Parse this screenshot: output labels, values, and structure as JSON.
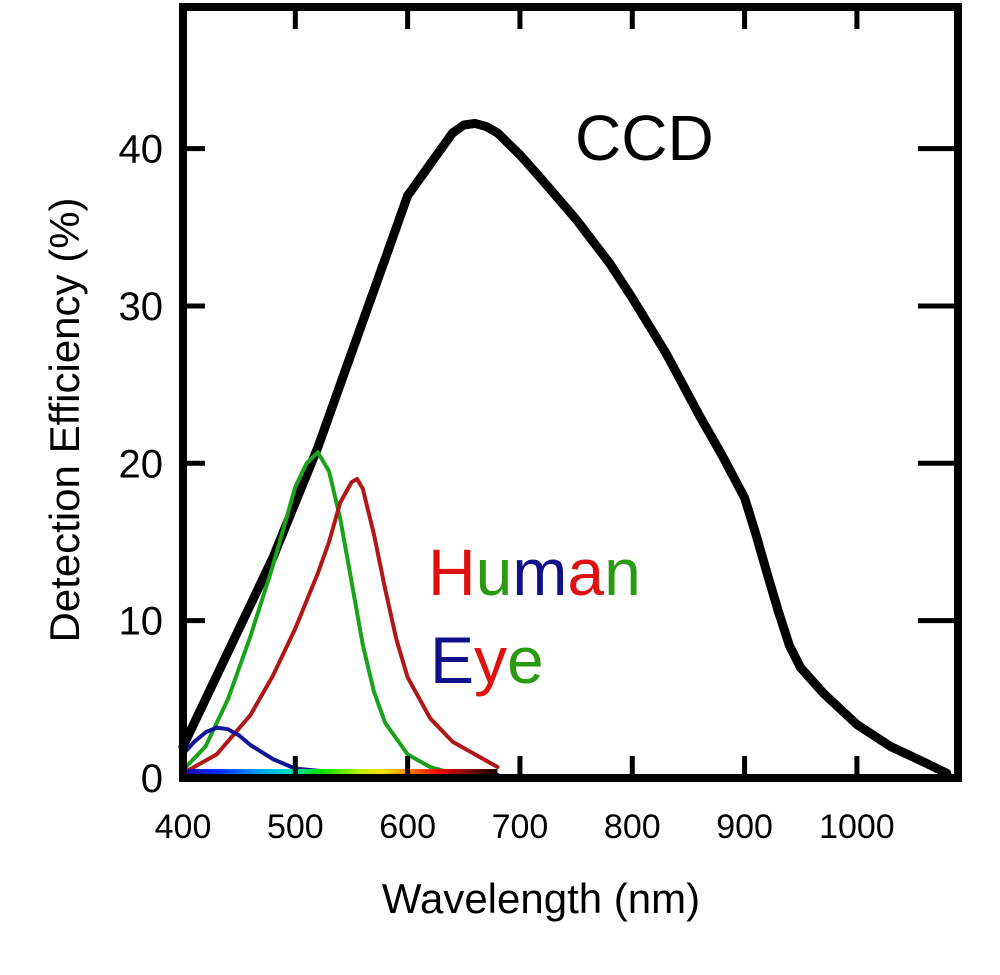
{
  "chart_data": {
    "type": "line",
    "xlabel": "Wavelength (nm)",
    "ylabel": "Detection Efficiency (%)",
    "xlim": [
      400,
      1090
    ],
    "ylim": [
      0,
      49
    ],
    "x_ticks": [
      400,
      500,
      600,
      700,
      800,
      900,
      1000
    ],
    "y_ticks": [
      0,
      10,
      20,
      30,
      40
    ],
    "x_tick_labels": [
      "400",
      "500",
      "600",
      "700",
      "800",
      "900",
      "1000"
    ],
    "y_tick_labels": [
      "0",
      "10",
      "20",
      "30",
      "40"
    ],
    "grid": false,
    "spectrum_bar": {
      "from": 400,
      "to": 680
    },
    "annotations": {
      "ccd_label": "CCD",
      "human_letters": [
        {
          "char": "H",
          "color": "#e01010"
        },
        {
          "char": "u",
          "color": "#2a9a10"
        },
        {
          "char": "m",
          "color": "#10108a"
        },
        {
          "char": "a",
          "color": "#e01010"
        },
        {
          "char": "n",
          "color": "#2a9a10"
        }
      ],
      "eye_letters": [
        {
          "char": "E",
          "color": "#10108a"
        },
        {
          "char": "y",
          "color": "#e01010"
        },
        {
          "char": "e",
          "color": "#2a9a10"
        }
      ]
    },
    "series": [
      {
        "color": "#000000",
        "x": [
          400,
          420,
          450,
          480,
          500,
          520,
          540,
          560,
          580,
          600,
          620,
          630,
          640,
          650,
          660,
          670,
          680,
          700,
          720,
          750,
          780,
          800,
          830,
          860,
          880,
          900,
          910,
          920,
          930,
          940,
          950,
          970,
          1000,
          1030,
          1060,
          1080
        ],
        "y": [
          2,
          5,
          9.5,
          14,
          17.5,
          21,
          25,
          29,
          33,
          37,
          39,
          40,
          41,
          41.5,
          41.6,
          41.4,
          41,
          39.6,
          38,
          35.5,
          32.7,
          30.5,
          27,
          23,
          20.5,
          17.8,
          15.5,
          13,
          10.6,
          8.4,
          7,
          5.4,
          3.4,
          2,
          1,
          0.3
        ]
      },
      {
        "color": "#1aa31a",
        "x": [
          400,
          420,
          440,
          460,
          480,
          500,
          510,
          520,
          530,
          540,
          550,
          560,
          570,
          580,
          600,
          620,
          640,
          660,
          680
        ],
        "y": [
          0.5,
          2,
          5,
          9,
          13.5,
          18.5,
          20,
          20.7,
          19.5,
          16.5,
          12.5,
          8.5,
          5.5,
          3.5,
          1.5,
          0.7,
          0.3,
          0.15,
          0.1
        ]
      },
      {
        "color": "#b01818",
        "x": [
          400,
          430,
          460,
          480,
          500,
          520,
          530,
          540,
          550,
          555,
          560,
          570,
          580,
          590,
          600,
          620,
          640,
          660,
          680
        ],
        "y": [
          0.3,
          1.5,
          4,
          6.5,
          9.5,
          13,
          15,
          17.5,
          18.8,
          19,
          18.4,
          15.5,
          12,
          8.8,
          6.4,
          3.8,
          2.3,
          1.5,
          0.7
        ]
      },
      {
        "color": "#14149a",
        "x": [
          400,
          410,
          420,
          430,
          440,
          450,
          460,
          480,
          500,
          530,
          560,
          600,
          640,
          680
        ],
        "y": [
          1.5,
          2.3,
          2.9,
          3.2,
          3.1,
          2.7,
          2.1,
          1.2,
          0.6,
          0.4,
          0.3,
          0.25,
          0.2,
          0.2
        ]
      }
    ]
  }
}
